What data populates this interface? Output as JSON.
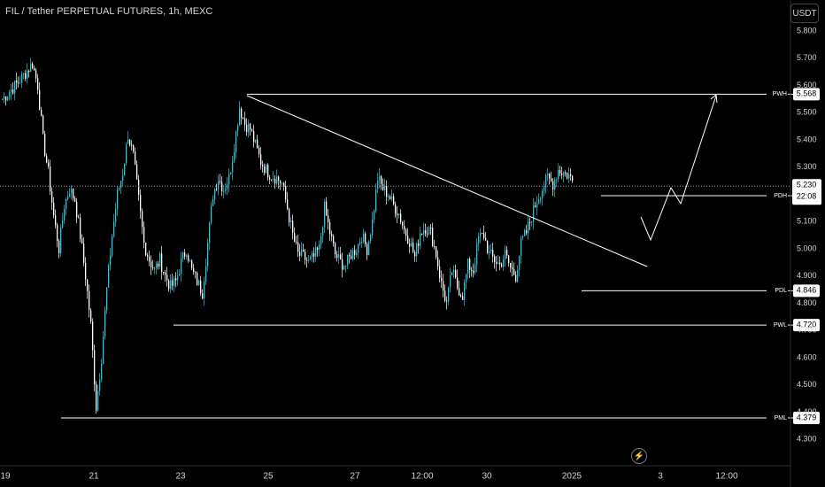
{
  "header": {
    "symbol_title": "FIL / Tether PERPETUAL FUTURES, 1h, MEXC",
    "currency_button": "USDT"
  },
  "colors": {
    "background": "#000000",
    "bull": "#26c6da",
    "bear": "#ffffff",
    "drawing": "#ffffff",
    "axis_text": "#d1d4dc"
  },
  "icons": {
    "replay": "lightning-icon"
  },
  "chart_data": {
    "type": "candlestick",
    "title": "FIL / Tether PERPETUAL FUTURES, 1h, MEXC",
    "ylim": [
      4.26,
      5.86
    ],
    "y_ticks": [
      "5.800",
      "5.700",
      "5.600",
      "5.500",
      "5.400",
      "5.300",
      "5.100",
      "5.000",
      "4.900",
      "4.800",
      "4.700",
      "4.600",
      "4.500",
      "4.400",
      "4.300"
    ],
    "x_ticks": [
      "19",
      "21",
      "23",
      "25",
      "27",
      "12:00",
      "30",
      "2025",
      "3",
      "12:00"
    ],
    "price_path": [
      [
        0,
        5.55
      ],
      [
        3,
        5.62
      ],
      [
        5,
        5.68
      ],
      [
        6,
        5.6
      ],
      [
        7,
        5.4
      ],
      [
        8,
        5.28
      ],
      [
        9,
        5.12
      ],
      [
        10,
        5.0
      ],
      [
        11,
        5.16
      ],
      [
        12,
        5.22
      ],
      [
        13,
        5.18
      ],
      [
        14,
        5.05
      ],
      [
        15,
        4.9
      ],
      [
        16,
        4.72
      ],
      [
        17,
        4.42
      ],
      [
        18,
        4.6
      ],
      [
        19,
        4.85
      ],
      [
        20,
        5.05
      ],
      [
        21,
        5.2
      ],
      [
        22,
        5.28
      ],
      [
        23,
        5.42
      ],
      [
        24,
        5.34
      ],
      [
        25,
        5.18
      ],
      [
        26,
        5.02
      ],
      [
        27,
        4.96
      ],
      [
        28,
        4.92
      ],
      [
        29,
        4.96
      ],
      [
        30,
        4.9
      ],
      [
        31,
        4.86
      ],
      [
        32,
        4.88
      ],
      [
        33,
        4.95
      ],
      [
        34,
        5.0
      ],
      [
        35,
        4.92
      ],
      [
        36,
        4.88
      ],
      [
        37,
        4.84
      ],
      [
        38,
        5.02
      ],
      [
        39,
        5.2
      ],
      [
        40,
        5.26
      ],
      [
        41,
        5.22
      ],
      [
        42,
        5.26
      ],
      [
        43,
        5.38
      ],
      [
        44,
        5.52
      ],
      [
        45,
        5.46
      ],
      [
        46,
        5.44
      ],
      [
        47,
        5.38
      ],
      [
        48,
        5.32
      ],
      [
        49,
        5.29
      ],
      [
        50,
        5.27
      ],
      [
        51,
        5.26
      ],
      [
        52,
        5.24
      ],
      [
        53,
        5.15
      ],
      [
        54,
        5.05
      ],
      [
        55,
        4.98
      ],
      [
        56,
        4.97
      ],
      [
        57,
        4.95
      ],
      [
        58,
        4.97
      ],
      [
        59,
        5.0
      ],
      [
        60,
        5.15
      ],
      [
        61,
        5.06
      ],
      [
        62,
        4.98
      ],
      [
        63,
        4.95
      ],
      [
        64,
        4.94
      ],
      [
        65,
        4.98
      ],
      [
        66,
        5.0
      ],
      [
        67,
        5.05
      ],
      [
        68,
        5.0
      ],
      [
        69,
        5.1
      ],
      [
        70,
        5.26
      ],
      [
        71,
        5.22
      ],
      [
        72,
        5.2
      ],
      [
        73,
        5.16
      ],
      [
        74,
        5.13
      ],
      [
        75,
        5.07
      ],
      [
        76,
        5.03
      ],
      [
        77,
        4.97
      ],
      [
        78,
        5.06
      ],
      [
        79,
        5.08
      ],
      [
        80,
        5.06
      ],
      [
        81,
        4.98
      ],
      [
        82,
        4.87
      ],
      [
        83,
        4.8
      ],
      [
        84,
        4.92
      ],
      [
        85,
        4.86
      ],
      [
        86,
        4.83
      ],
      [
        87,
        4.94
      ],
      [
        88,
        4.92
      ],
      [
        89,
        5.04
      ],
      [
        90,
        5.05
      ],
      [
        91,
        4.98
      ],
      [
        92,
        4.96
      ],
      [
        93,
        4.94
      ],
      [
        94,
        4.98
      ],
      [
        95,
        4.93
      ],
      [
        96,
        4.9
      ],
      [
        97,
        5.02
      ],
      [
        98,
        5.06
      ],
      [
        99,
        5.12
      ],
      [
        100,
        5.18
      ],
      [
        101,
        5.22
      ],
      [
        102,
        5.26
      ],
      [
        103,
        5.24
      ],
      [
        104,
        5.29
      ],
      [
        105,
        5.28
      ],
      [
        106,
        5.27
      ],
      [
        107,
        5.24
      ]
    ],
    "current_price": "5.230",
    "countdown": "22:08",
    "levels": [
      {
        "name": "PWH",
        "value": "5.568"
      },
      {
        "name": "PDH",
        "value": "5.195"
      },
      {
        "name": "PDL",
        "value": "4.846"
      },
      {
        "name": "PWL",
        "value": "4.720"
      },
      {
        "name": "PML",
        "value": "4.379"
      }
    ]
  }
}
